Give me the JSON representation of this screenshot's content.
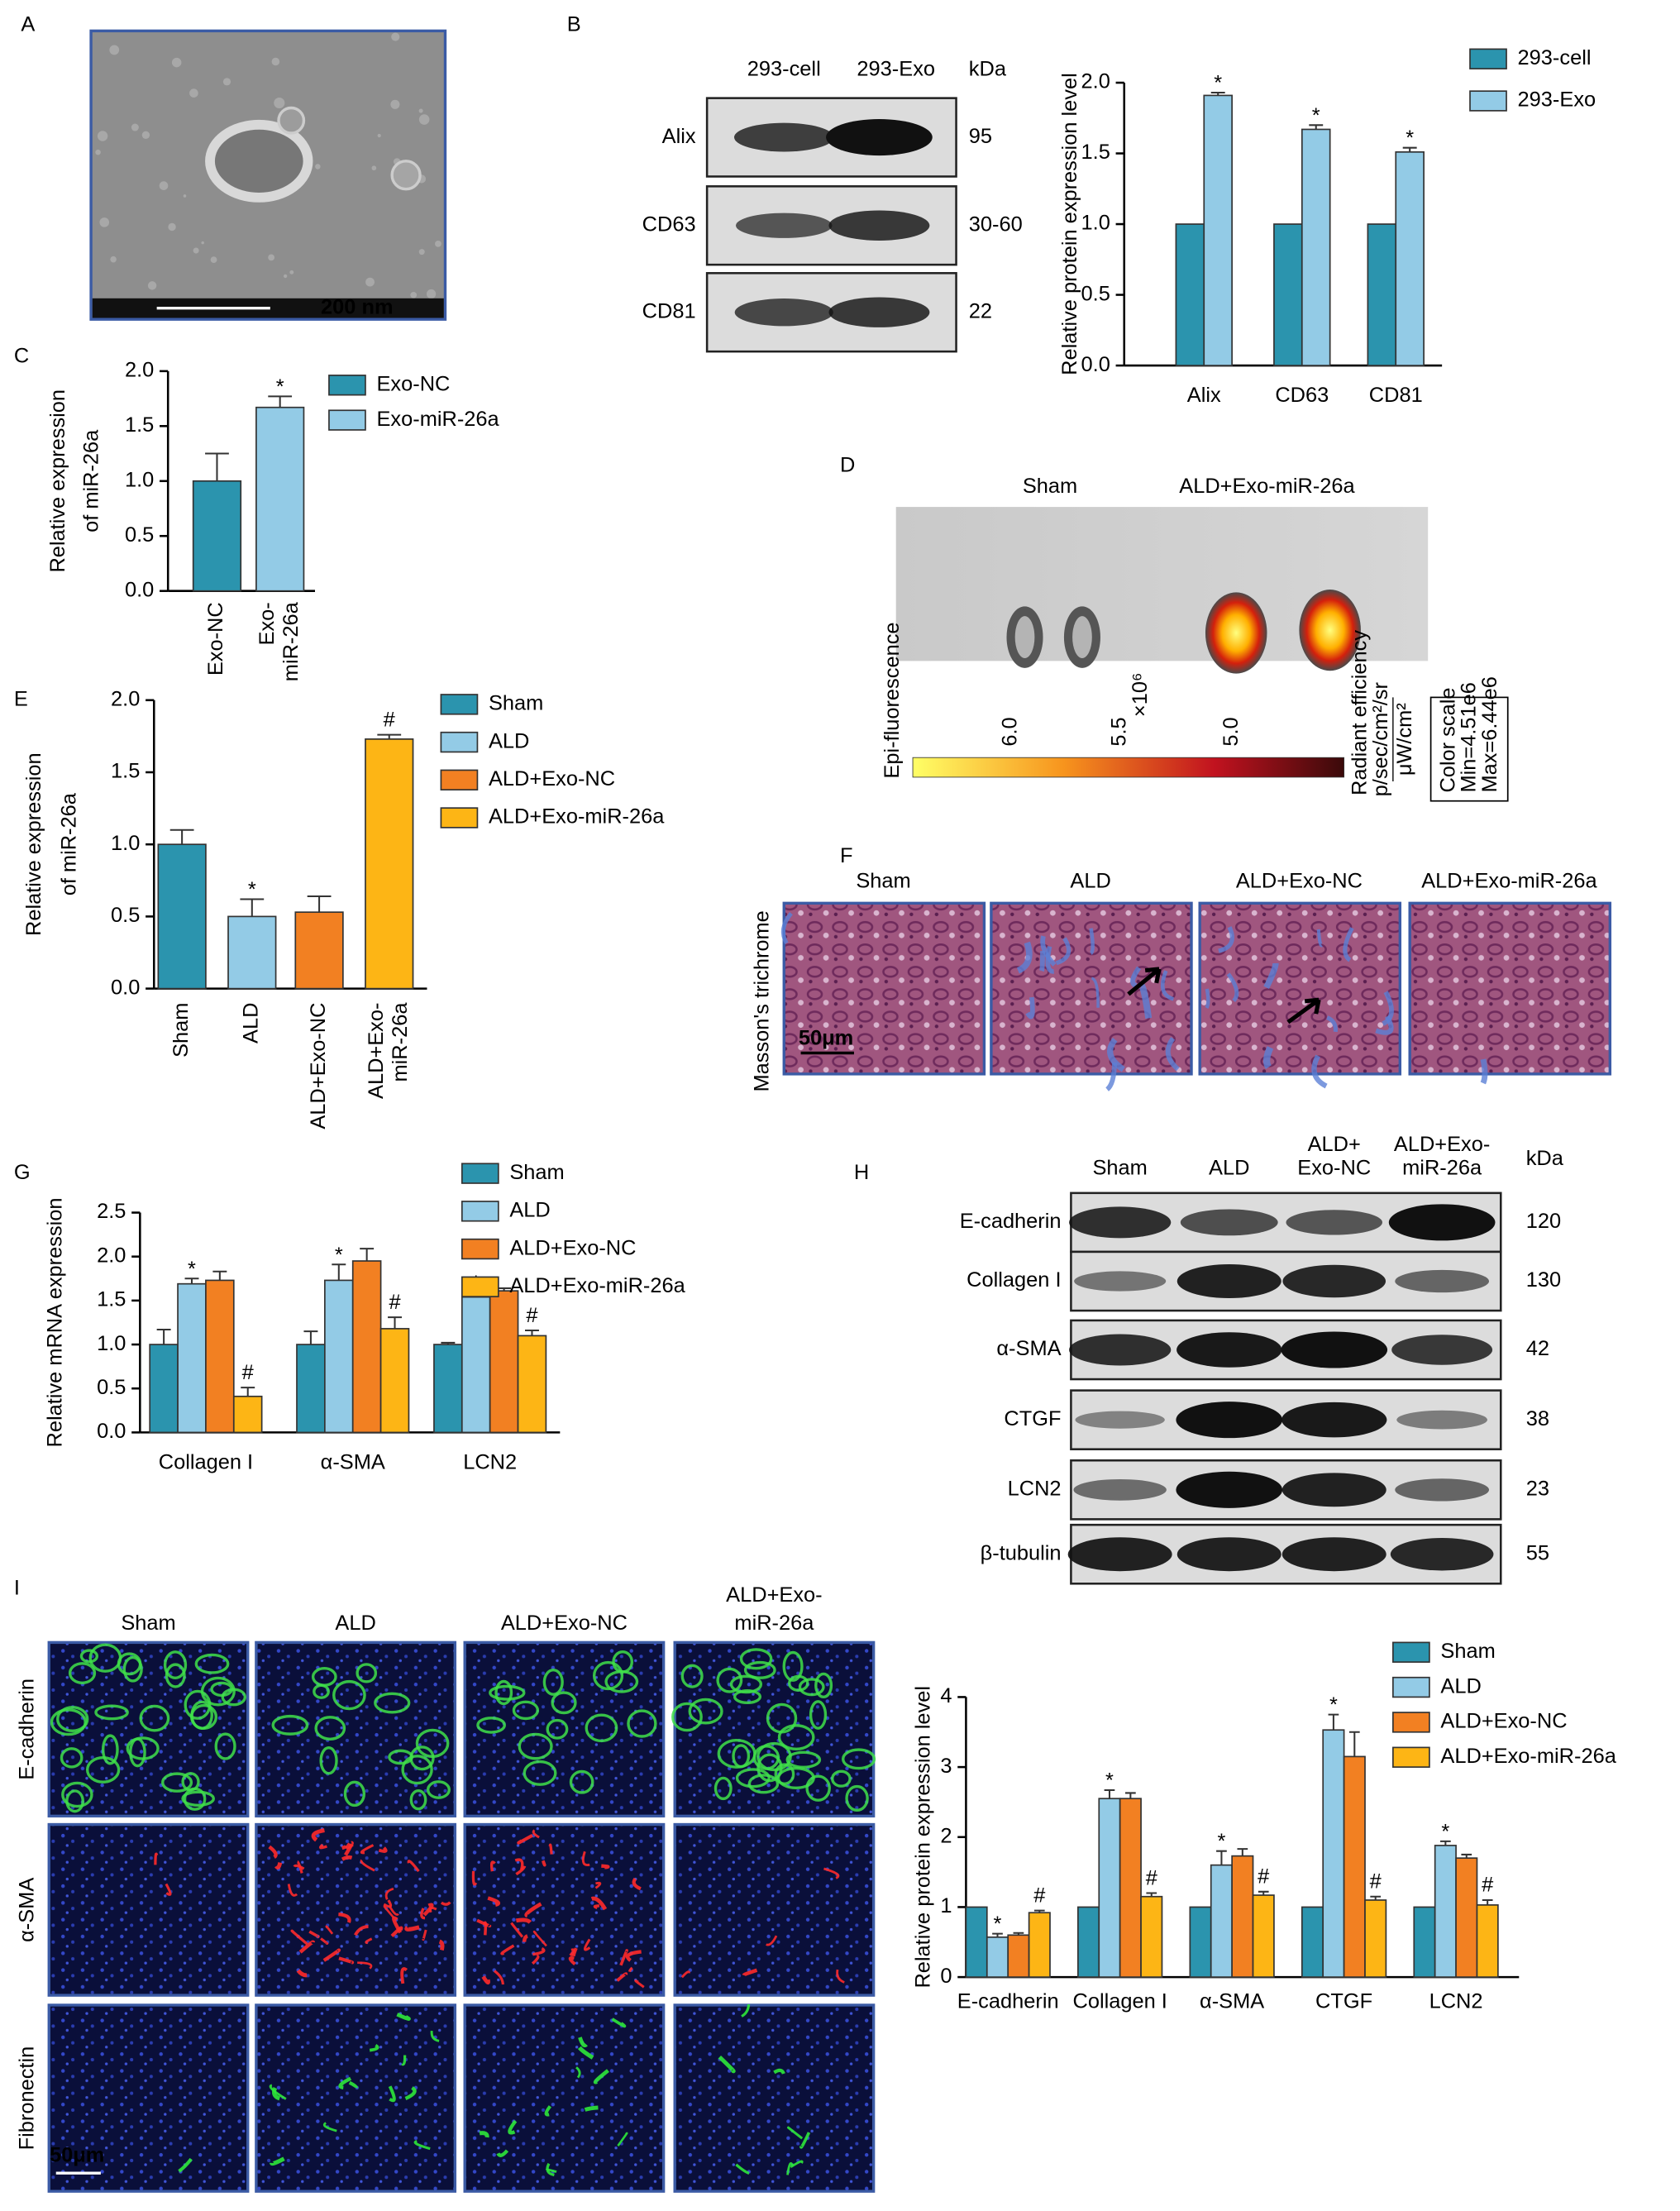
{
  "panel_letters": [
    "A",
    "B",
    "C",
    "D",
    "E",
    "F",
    "G",
    "H",
    "I"
  ],
  "panel_a": {
    "scale_bar": "200 nm"
  },
  "panel_b_blot": {
    "columns": [
      "293-cell",
      "293-Exo"
    ],
    "unit": "kDa",
    "rows": [
      {
        "label": "Alix",
        "kda": "95"
      },
      {
        "label": "CD63",
        "kda": "30-60"
      },
      {
        "label": "CD81",
        "kda": "22"
      }
    ]
  },
  "panel_d": {
    "groups": [
      "Sham",
      "ALD+Exo-miR-26a"
    ],
    "colorbar_title": "Epi-fluorescence",
    "colorbar_ticks": [
      "6.0",
      "5.5",
      "5.0"
    ],
    "colorbar_exponent": "×10⁶",
    "unit_title": "Radiant efficiency",
    "unit_numerator": "p/sec/cm²/sr",
    "unit_denominator": "μW/cm²",
    "scale_box": [
      "Color scale",
      "Min=4.51e6",
      "Max=6.44e6"
    ]
  },
  "panel_f": {
    "stain": "Masson's trichrome",
    "columns": [
      "Sham",
      "ALD",
      "ALD+Exo-NC",
      "ALD+Exo-miR-26a"
    ],
    "scale_bar": "50μm"
  },
  "panel_h_blot": {
    "columns": [
      [
        "Sham"
      ],
      [
        "ALD"
      ],
      [
        "ALD+",
        "Exo-NC"
      ],
      [
        "ALD+Exo-",
        "miR-26a"
      ]
    ],
    "unit": "kDa",
    "rows": [
      {
        "label": "E-cadherin",
        "kda": "120"
      },
      {
        "label": "Collagen I",
        "kda": "130"
      },
      {
        "label": "α-SMA",
        "kda": "42"
      },
      {
        "label": "CTGF",
        "kda": "38"
      },
      {
        "label": "LCN2",
        "kda": "23"
      },
      {
        "label": "β-tubulin",
        "kda": "55"
      }
    ]
  },
  "panel_i_images": {
    "columns": [
      [
        "Sham"
      ],
      [
        "ALD"
      ],
      [
        "ALD+Exo-NC"
      ],
      [
        "ALD+Exo-",
        "miR-26a"
      ]
    ],
    "rows": [
      "E-cadherin",
      "α-SMA",
      "Fibronectin"
    ],
    "scale_bar": "50μm"
  },
  "chart_data": [
    {
      "type": "bar",
      "ylabel": [
        "Relative protein expression level"
      ],
      "categories": [
        "Alix",
        "CD63",
        "CD81"
      ],
      "ylim": [
        0,
        2
      ],
      "yticks": [
        {
          "value": 0,
          "label": "0.0"
        },
        0.5,
        {
          "value": 1,
          "label": "1.0"
        },
        1.5,
        {
          "value": 2,
          "label": "2.0"
        }
      ],
      "series": [
        {
          "name": "293-cell",
          "color": "#2b94ae",
          "values": [
            1,
            1,
            1
          ]
        },
        {
          "name": "293-Exo",
          "color": "#93cbe6",
          "values": [
            1.91,
            1.67,
            1.51
          ],
          "errors": [
            0.02,
            0.03,
            0.03
          ],
          "markers": [
            "*",
            "*",
            "*"
          ]
        }
      ]
    },
    {
      "type": "bar",
      "ylabel": [
        "Relative expression",
        "of miR-26a"
      ],
      "categories": [
        [
          "Exo-NC"
        ],
        [
          "Exo-",
          "miR-26a"
        ]
      ],
      "ylim": [
        0,
        2
      ],
      "yticks": [
        {
          "value": 0,
          "label": "0.0"
        },
        0.5,
        {
          "value": 1,
          "label": "1.0"
        },
        1.5,
        {
          "value": 2,
          "label": "2.0"
        }
      ],
      "values": [
        1.0,
        1.67
      ],
      "errors": [
        0.25,
        0.1
      ],
      "markers": [
        null,
        "*"
      ],
      "colors": [
        "#2b94ae",
        "#93cbe6"
      ],
      "legend": [
        "Exo-NC",
        "Exo-miR-26a"
      ]
    },
    {
      "type": "bar",
      "ylabel": [
        "Relative expression",
        "of miR-26a"
      ],
      "categories": [
        [
          "Sham"
        ],
        [
          "ALD"
        ],
        [
          "ALD+Exo-NC"
        ],
        [
          "ALD+Exo-",
          "miR-26a"
        ]
      ],
      "ylim": [
        0,
        2
      ],
      "yticks": [
        {
          "value": 0,
          "label": "0.0"
        },
        0.5,
        {
          "value": 1,
          "label": "1.0"
        },
        1.5,
        {
          "value": 2,
          "label": "2.0"
        }
      ],
      "values": [
        1.0,
        0.5,
        0.53,
        1.73
      ],
      "errors": [
        0.1,
        0.12,
        0.11,
        0.03
      ],
      "markers": [
        null,
        "*",
        null,
        "#"
      ],
      "colors": [
        "#2b94ae",
        "#93cbe6",
        "#f28022",
        "#fdb515"
      ],
      "legend": [
        "Sham",
        "ALD",
        "ALD+Exo-NC",
        "ALD+Exo-miR-26a"
      ]
    },
    {
      "type": "bar",
      "ylabel": [
        "Relative mRNA expression"
      ],
      "categories": [
        "Collagen I",
        "α-SMA",
        "LCN2"
      ],
      "ylim": [
        0,
        2.5
      ],
      "yticks": [
        {
          "value": 0,
          "label": "0.0"
        },
        0.5,
        {
          "value": 1,
          "label": "1.0"
        },
        1.5,
        {
          "value": 2,
          "label": "2.0"
        },
        2.5
      ],
      "series": [
        {
          "name": "Sham",
          "color": "#2b94ae",
          "values": [
            1,
            1,
            1
          ],
          "errors": [
            0.17,
            0.15,
            0.02
          ]
        },
        {
          "name": "ALD",
          "color": "#93cbe6",
          "values": [
            1.69,
            1.73,
            1.54
          ],
          "errors": [
            0.06,
            0.18,
            0.05
          ],
          "markers": [
            "*",
            "*",
            "*"
          ]
        },
        {
          "name": "ALD+Exo-NC",
          "color": "#f28022",
          "values": [
            1.73,
            1.95,
            1.61
          ],
          "errors": [
            0.1,
            0.14,
            0.03
          ]
        },
        {
          "name": "ALD+Exo-miR-26a",
          "color": "#fdb515",
          "values": [
            0.41,
            1.18,
            1.1
          ],
          "errors": [
            0.1,
            0.13,
            0.06
          ],
          "markers": [
            "#",
            "#",
            "#"
          ]
        }
      ]
    },
    {
      "type": "bar",
      "ylabel": [
        "Relative protein expression level"
      ],
      "categories": [
        "E-cadherin",
        "Collagen I",
        "α-SMA",
        "CTGF",
        "LCN2"
      ],
      "ylim": [
        0,
        4
      ],
      "yticks": [
        0,
        1,
        2,
        3,
        4
      ],
      "series": [
        {
          "name": "Sham",
          "color": "#2b94ae",
          "values": [
            1,
            1,
            1,
            1,
            1
          ]
        },
        {
          "name": "ALD",
          "color": "#93cbe6",
          "values": [
            0.57,
            2.55,
            1.6,
            3.53,
            1.88
          ],
          "errors": [
            0.05,
            0.12,
            0.2,
            0.22,
            0.06
          ],
          "markers": [
            "*",
            "*",
            "*",
            "*",
            "*"
          ]
        },
        {
          "name": "ALD+Exo-NC",
          "color": "#f28022",
          "values": [
            0.6,
            2.55,
            1.73,
            3.15,
            1.7
          ],
          "errors": [
            0.03,
            0.08,
            0.1,
            0.35,
            0.05
          ]
        },
        {
          "name": "ALD+Exo-miR-26a",
          "color": "#fdb515",
          "values": [
            0.92,
            1.15,
            1.17,
            1.1,
            1.03
          ],
          "errors": [
            0.03,
            0.05,
            0.05,
            0.05,
            0.07
          ],
          "markers": [
            "#",
            "#",
            "#",
            "#",
            "#"
          ]
        }
      ]
    }
  ]
}
